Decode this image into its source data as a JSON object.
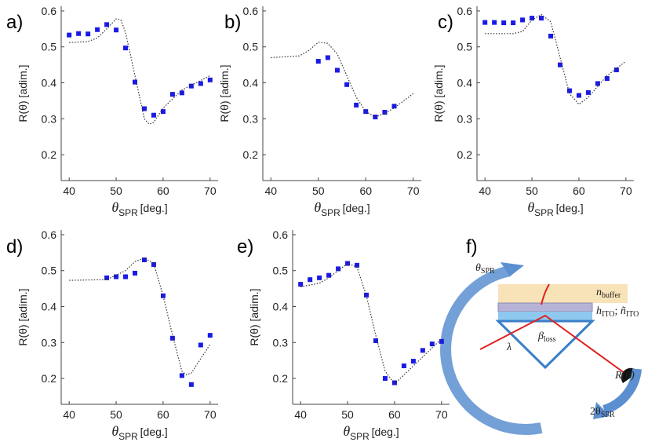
{
  "chart_data": [
    {
      "type": "scatter",
      "panel_label": "a)",
      "y_label": "R(θ) [adim.]",
      "x_label": {
        "symbol": "θ",
        "subscript": "SPR",
        "unit": "[deg.]"
      },
      "xlim": [
        38.3,
        71.7
      ],
      "ylim": [
        0.128,
        0.613
      ],
      "xticks": [
        40,
        50,
        60,
        70
      ],
      "yticks": [
        0.2,
        0.3,
        0.4,
        0.5,
        0.6
      ],
      "series": [
        {
          "style": "markers",
          "color": "#1a1ae6",
          "x": [
            40,
            42,
            44,
            46,
            48,
            50,
            52,
            54,
            56,
            58,
            60,
            62,
            64,
            66,
            68,
            70
          ],
          "values": [
            0.533,
            0.537,
            0.536,
            0.548,
            0.562,
            0.547,
            0.497,
            0.402,
            0.328,
            0.31,
            0.32,
            0.368,
            0.372,
            0.391,
            0.398,
            0.408
          ]
        },
        {
          "style": "dotted",
          "color": "#333333",
          "x": [
            40,
            44,
            46,
            48,
            50,
            51,
            52,
            54,
            56,
            57,
            58,
            60,
            64,
            70
          ],
          "values": [
            0.512,
            0.515,
            0.525,
            0.55,
            0.578,
            0.575,
            0.54,
            0.42,
            0.3,
            0.285,
            0.29,
            0.33,
            0.38,
            0.42
          ]
        }
      ]
    },
    {
      "type": "scatter",
      "panel_label": "b)",
      "y_label": "R(θ) [adim.]",
      "x_label": {
        "symbol": "θ",
        "subscript": "SPR",
        "unit": "[deg.]"
      },
      "xlim": [
        38.3,
        71.7
      ],
      "ylim": [
        0.128,
        0.613
      ],
      "xticks": [
        40,
        50,
        60,
        70
      ],
      "yticks": [
        0.2,
        0.3,
        0.4,
        0.5,
        0.6
      ],
      "series": [
        {
          "style": "markers",
          "color": "#1a1ae6",
          "x": [
            50,
            52,
            54,
            56,
            58,
            60,
            62,
            64,
            66
          ],
          "values": [
            0.46,
            0.47,
            0.435,
            0.395,
            0.338,
            0.32,
            0.305,
            0.318,
            0.335
          ]
        },
        {
          "style": "dotted",
          "color": "#333333",
          "x": [
            40,
            46,
            48,
            50,
            52,
            54,
            56,
            58,
            60,
            62,
            64,
            66,
            70
          ],
          "values": [
            0.47,
            0.475,
            0.49,
            0.513,
            0.51,
            0.48,
            0.42,
            0.36,
            0.32,
            0.305,
            0.315,
            0.33,
            0.37
          ]
        }
      ]
    },
    {
      "type": "scatter",
      "panel_label": "c)",
      "y_label": "R(θ) [adim.]",
      "x_label": {
        "symbol": "θ",
        "subscript": "SPR",
        "unit": "[deg.]"
      },
      "xlim": [
        38.3,
        71.7
      ],
      "ylim": [
        0.128,
        0.613
      ],
      "xticks": [
        40,
        50,
        60,
        70
      ],
      "yticks": [
        0.2,
        0.3,
        0.4,
        0.5,
        0.6
      ],
      "series": [
        {
          "style": "markers",
          "color": "#1a1ae6",
          "x": [
            40,
            42,
            44,
            46,
            48,
            50,
            52,
            54,
            56,
            58,
            60,
            62,
            64,
            66,
            68
          ],
          "values": [
            0.568,
            0.568,
            0.567,
            0.567,
            0.575,
            0.58,
            0.58,
            0.53,
            0.45,
            0.378,
            0.365,
            0.373,
            0.398,
            0.412,
            0.436
          ]
        },
        {
          "style": "dotted",
          "color": "#333333",
          "x": [
            40,
            46,
            48,
            50,
            52,
            54,
            56,
            58,
            60,
            62,
            66,
            70
          ],
          "values": [
            0.537,
            0.537,
            0.543,
            0.575,
            0.59,
            0.57,
            0.47,
            0.37,
            0.34,
            0.36,
            0.42,
            0.46
          ]
        }
      ]
    },
    {
      "type": "scatter",
      "panel_label": "d)",
      "y_label": "R(θ) [adim.]",
      "x_label": {
        "symbol": "θ",
        "subscript": "SPR",
        "unit": "[deg.]"
      },
      "xlim": [
        38.3,
        71.7
      ],
      "ylim": [
        0.128,
        0.613
      ],
      "xticks": [
        40,
        50,
        60,
        70
      ],
      "yticks": [
        0.2,
        0.3,
        0.4,
        0.5,
        0.6
      ],
      "series": [
        {
          "style": "markers",
          "color": "#1a1ae6",
          "x": [
            48,
            50,
            52,
            54,
            56,
            58,
            60,
            62,
            64,
            66,
            68,
            70
          ],
          "values": [
            0.48,
            0.483,
            0.483,
            0.493,
            0.53,
            0.517,
            0.43,
            0.312,
            0.208,
            0.183,
            0.293,
            0.32
          ]
        },
        {
          "style": "dotted",
          "color": "#333333",
          "x": [
            40,
            48,
            52,
            54,
            56,
            58,
            60,
            62,
            64,
            65,
            66,
            70
          ],
          "values": [
            0.473,
            0.475,
            0.5,
            0.525,
            0.535,
            0.52,
            0.43,
            0.32,
            0.22,
            0.21,
            0.215,
            0.295
          ]
        }
      ]
    },
    {
      "type": "scatter",
      "panel_label": "e)",
      "y_label": "R(θ) [adim.]",
      "x_label": {
        "symbol": "θ",
        "subscript": "SPR",
        "unit": "[deg.]"
      },
      "xlim": [
        38.3,
        71.7
      ],
      "ylim": [
        0.128,
        0.613
      ],
      "xticks": [
        40,
        50,
        60,
        70
      ],
      "yticks": [
        0.2,
        0.3,
        0.4,
        0.5,
        0.6
      ],
      "series": [
        {
          "style": "markers",
          "color": "#1a1ae6",
          "x": [
            40,
            42,
            44,
            46,
            48,
            50,
            52,
            54,
            56,
            58,
            60,
            62,
            64,
            66,
            68,
            70
          ],
          "values": [
            0.462,
            0.475,
            0.48,
            0.487,
            0.505,
            0.52,
            0.515,
            0.432,
            0.305,
            0.2,
            0.188,
            0.235,
            0.248,
            0.278,
            0.296,
            0.303
          ]
        },
        {
          "style": "dotted",
          "color": "#333333",
          "x": [
            40,
            44,
            46,
            48,
            50,
            52,
            54,
            56,
            58,
            60,
            62,
            66,
            70
          ],
          "values": [
            0.455,
            0.465,
            0.48,
            0.5,
            0.52,
            0.51,
            0.43,
            0.32,
            0.22,
            0.185,
            0.21,
            0.26,
            0.31
          ]
        }
      ]
    }
  ],
  "diagram": {
    "panel_label": "f)",
    "theta_label": {
      "symbol": "θ",
      "subscript": "SPR"
    },
    "buffer_label": {
      "symbol": "n",
      "subscript": "buffer"
    },
    "ito_label": {
      "h": "h",
      "h_sub": "ITO",
      "sep": "; ",
      "n": "ñ",
      "n_sub": "ITO"
    },
    "beta_label": {
      "symbol": "β",
      "subscript": "loss"
    },
    "lambda_label": "λ",
    "reflect_label": "R(θ)",
    "two_theta_label": {
      "symbol": "2θ",
      "subscript": "SPR"
    }
  }
}
